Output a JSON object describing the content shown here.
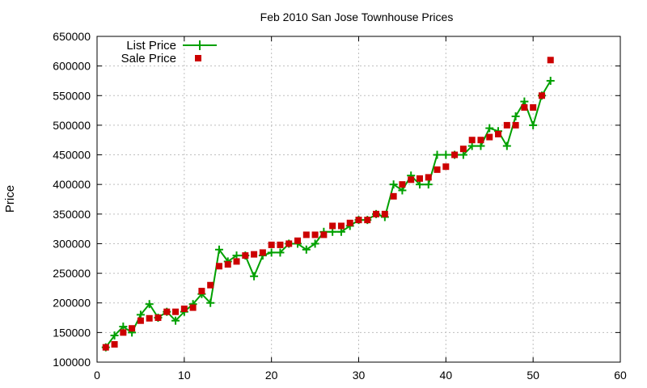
{
  "chart_data": {
    "type": "line",
    "title": "Feb 2010 San Jose Townhouse Prices",
    "xlabel": "",
    "ylabel": "Price",
    "xlim": [
      0,
      60
    ],
    "ylim": [
      100000,
      650000
    ],
    "x_ticks": [
      0,
      10,
      20,
      30,
      40,
      50,
      60
    ],
    "y_ticks": [
      100000,
      150000,
      200000,
      250000,
      300000,
      350000,
      400000,
      450000,
      500000,
      550000,
      600000,
      650000
    ],
    "grid": true,
    "legend_position": "top-left",
    "colors": {
      "list": "#00a000",
      "sale": "#cc0000"
    },
    "series": [
      {
        "name": "List Price",
        "style": "line-plus",
        "x": [
          1,
          2,
          3,
          4,
          5,
          6,
          7,
          8,
          9,
          10,
          11,
          12,
          13,
          14,
          15,
          16,
          17,
          18,
          19,
          20,
          21,
          22,
          23,
          24,
          25,
          26,
          27,
          28,
          29,
          30,
          31,
          32,
          33,
          34,
          35,
          36,
          37,
          38,
          39,
          40,
          41,
          42,
          43,
          44,
          45,
          46,
          47,
          48,
          49,
          50,
          51,
          52
        ],
        "values": [
          125000,
          145000,
          160000,
          150000,
          180000,
          198000,
          175000,
          185000,
          170000,
          185000,
          198000,
          215000,
          200000,
          290000,
          270000,
          280000,
          280000,
          245000,
          280000,
          285000,
          285000,
          300000,
          300000,
          290000,
          300000,
          320000,
          320000,
          320000,
          330000,
          340000,
          340000,
          350000,
          345000,
          400000,
          390000,
          415000,
          400000,
          400000,
          450000,
          450000,
          450000,
          450000,
          465000,
          465000,
          495000,
          490000,
          465000,
          515000,
          540000,
          500000,
          550000,
          575000
        ]
      },
      {
        "name": "Sale Price",
        "style": "square",
        "x": [
          1,
          2,
          3,
          4,
          5,
          6,
          7,
          8,
          9,
          10,
          11,
          12,
          13,
          14,
          15,
          16,
          17,
          18,
          19,
          20,
          21,
          22,
          23,
          24,
          25,
          26,
          27,
          28,
          29,
          30,
          31,
          32,
          33,
          34,
          35,
          36,
          37,
          38,
          39,
          40,
          41,
          42,
          43,
          44,
          45,
          46,
          47,
          48,
          49,
          50,
          51,
          52
        ],
        "values": [
          125000,
          130000,
          150000,
          157000,
          170000,
          174000,
          175000,
          185000,
          185000,
          190000,
          192000,
          220000,
          230000,
          262000,
          265000,
          270000,
          280000,
          282000,
          285000,
          298000,
          298000,
          300000,
          305000,
          315000,
          315000,
          315000,
          330000,
          330000,
          335000,
          340000,
          340000,
          350000,
          350000,
          380000,
          400000,
          408000,
          410000,
          412000,
          425000,
          430000,
          450000,
          460000,
          475000,
          475000,
          480000,
          485000,
          500000,
          500000,
          530000,
          530000,
          550000,
          610000
        ]
      }
    ]
  }
}
